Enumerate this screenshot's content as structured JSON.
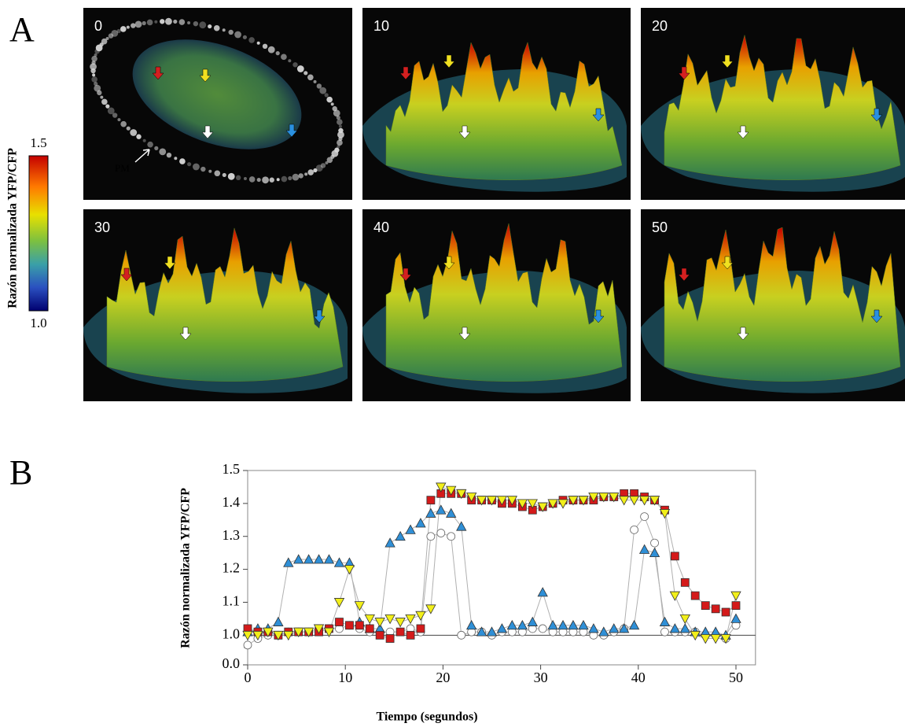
{
  "panel_labels": [
    "A",
    "B"
  ],
  "panel_a": {
    "frames": [
      {
        "time": "0"
      },
      {
        "time": "10"
      },
      {
        "time": "20"
      },
      {
        "time": "30"
      },
      {
        "time": "40"
      },
      {
        "time": "50"
      }
    ],
    "pm_label": "PM",
    "colorbar": {
      "label": "Razón normalizada YFP/CFP",
      "lim": [
        1.0,
        1.5
      ],
      "ticks": [
        {
          "value": 1.5,
          "label": "1.5"
        },
        {
          "value": 1.0,
          "label": "1.0"
        }
      ]
    }
  },
  "chart_data": {
    "type": "line",
    "x_label": "Tiempo (segundos)",
    "y_label": "Razón normalizada YFP/CFP",
    "xlim": [
      0,
      52
    ],
    "xticks": [
      0,
      10,
      20,
      30,
      40,
      50
    ],
    "ylim": [
      0,
      1.5
    ],
    "y_break": [
      0,
      0.91
    ],
    "yticks": [
      {
        "value": 0.0,
        "label": "0.0"
      },
      {
        "value": 1.0,
        "label": "1.0"
      },
      {
        "value": 1.1,
        "label": "1.1"
      },
      {
        "value": 1.2,
        "label": "1.2"
      },
      {
        "value": 1.3,
        "label": "1.3"
      },
      {
        "value": 1.4,
        "label": "1.4"
      },
      {
        "value": 1.5,
        "label": "1.5"
      }
    ],
    "reference_line": 1.0,
    "line_color": "#b0b0b0",
    "x": [
      0,
      1.04,
      2.08,
      3.13,
      4.17,
      5.21,
      6.25,
      7.29,
      8.33,
      9.38,
      10.42,
      11.46,
      12.5,
      13.54,
      14.58,
      15.63,
      16.67,
      17.71,
      18.75,
      19.79,
      20.83,
      21.88,
      22.92,
      23.96,
      25,
      26.04,
      27.08,
      28.13,
      29.17,
      30.21,
      31.25,
      32.29,
      33.33,
      34.38,
      35.42,
      36.46,
      37.5,
      38.54,
      39.58,
      40.63,
      41.67,
      42.71,
      43.75,
      44.79,
      45.83,
      46.88,
      47.92,
      48.96,
      50
    ],
    "series": [
      {
        "color": "#ffffff",
        "marker": "circle",
        "values": [
          0.97,
          0.99,
          1.0,
          1.0,
          1.01,
          1.01,
          1.01,
          1.02,
          1.02,
          1.02,
          1.03,
          1.02,
          1.01,
          1.01,
          1.01,
          1.01,
          1.02,
          1.01,
          1.3,
          1.31,
          1.3,
          1.0,
          1.01,
          1.01,
          1.0,
          1.01,
          1.01,
          1.01,
          1.02,
          1.02,
          1.01,
          1.01,
          1.01,
          1.01,
          1.0,
          1.0,
          1.01,
          1.02,
          1.32,
          1.36,
          1.28,
          1.01,
          1.01,
          1.01,
          1.01,
          1.0,
          1.0,
          0.99,
          1.03
        ]
      },
      {
        "color": "#2f8fd6",
        "marker": "triangle",
        "values": [
          1.01,
          1.02,
          1.02,
          1.04,
          1.22,
          1.23,
          1.23,
          1.23,
          1.23,
          1.22,
          1.22,
          1.04,
          1.02,
          1.02,
          1.28,
          1.3,
          1.32,
          1.34,
          1.37,
          1.38,
          1.37,
          1.33,
          1.03,
          1.01,
          1.01,
          1.02,
          1.03,
          1.03,
          1.04,
          1.13,
          1.03,
          1.03,
          1.03,
          1.03,
          1.02,
          1.01,
          1.02,
          1.02,
          1.03,
          1.26,
          1.25,
          1.04,
          1.02,
          1.02,
          1.01,
          1.01,
          1.01,
          1.0,
          1.05
        ]
      },
      {
        "color": "#d41a1a",
        "marker": "square",
        "values": [
          1.02,
          1.01,
          1.01,
          1.0,
          1.01,
          1.01,
          1.01,
          1.01,
          1.02,
          1.04,
          1.03,
          1.03,
          1.02,
          1.0,
          0.99,
          1.01,
          1.0,
          1.02,
          1.41,
          1.43,
          1.43,
          1.43,
          1.41,
          1.41,
          1.41,
          1.4,
          1.4,
          1.39,
          1.38,
          1.39,
          1.4,
          1.41,
          1.41,
          1.41,
          1.41,
          1.42,
          1.42,
          1.43,
          1.43,
          1.42,
          1.41,
          1.38,
          1.24,
          1.16,
          1.12,
          1.09,
          1.08,
          1.07,
          1.09
        ]
      },
      {
        "color": "#f2ef1a",
        "marker": "triangle-down",
        "values": [
          1.0,
          1.0,
          1.01,
          1.0,
          1.0,
          1.01,
          1.01,
          1.02,
          1.01,
          1.1,
          1.2,
          1.09,
          1.05,
          1.04,
          1.05,
          1.04,
          1.05,
          1.06,
          1.08,
          1.45,
          1.44,
          1.43,
          1.42,
          1.41,
          1.41,
          1.41,
          1.41,
          1.4,
          1.4,
          1.39,
          1.4,
          1.4,
          1.41,
          1.41,
          1.42,
          1.42,
          1.42,
          1.41,
          1.41,
          1.41,
          1.41,
          1.37,
          1.12,
          1.05,
          1.0,
          0.99,
          0.99,
          0.99,
          1.12
        ]
      }
    ]
  }
}
